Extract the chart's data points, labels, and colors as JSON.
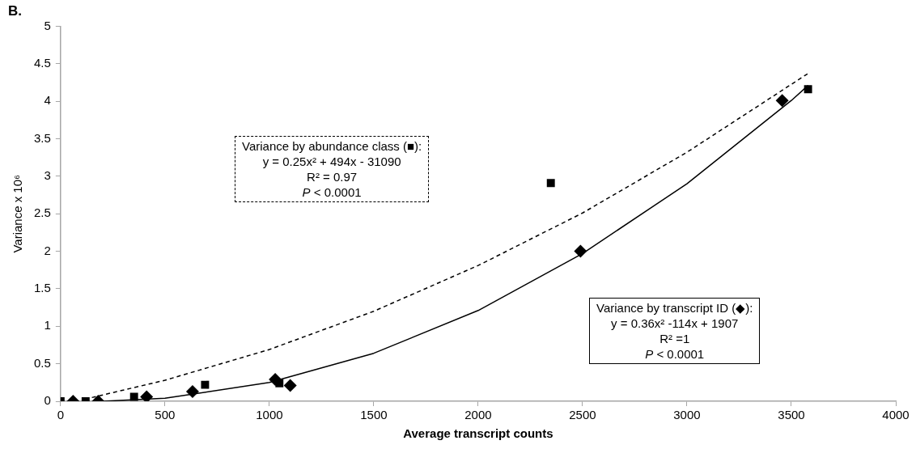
{
  "chart_data": {
    "type": "scatter",
    "title": "B.",
    "xlabel": "Average transcript counts",
    "ylabel": "Variance x 10⁶",
    "xlim": [
      0,
      4000
    ],
    "xticks": [
      0,
      500,
      1000,
      1500,
      2000,
      2500,
      3000,
      3500,
      4000
    ],
    "ylim": [
      0,
      5
    ],
    "yticks": [
      0,
      0.5,
      1,
      1.5,
      2,
      2.5,
      3,
      3.5,
      4,
      4.5,
      5
    ],
    "grid": false,
    "legend": false,
    "series": [
      {
        "type": "scatter",
        "marker": "square",
        "color": "#000000",
        "x": [
          0,
          120,
          352,
          692,
          1048,
          2348,
          3580
        ],
        "values": [
          0,
          0,
          0.06,
          0.22,
          0.24,
          2.91,
          4.16
        ]
      },
      {
        "type": "scatter",
        "marker": "diamond",
        "color": "#000000",
        "x": [
          60,
          180,
          412,
          632,
          1028,
          1100,
          2490,
          3456
        ],
        "values": [
          0,
          0,
          0.06,
          0.13,
          0.29,
          0.21,
          2.0,
          4.01
        ]
      },
      {
        "type": "line",
        "marker": "none",
        "line_style": "dashed",
        "color": "#000000",
        "x": [
          150,
          500,
          1000,
          1500,
          2000,
          2500,
          3000,
          3580
        ],
        "values": [
          0.05,
          0.28,
          0.69,
          1.2,
          1.81,
          2.51,
          3.32,
          4.37
        ]
      },
      {
        "type": "line",
        "marker": "none",
        "line_style": "solid",
        "color": "#000000",
        "x": [
          200,
          500,
          1000,
          1500,
          2000,
          2500,
          3000,
          3500,
          3580
        ],
        "values": [
          0,
          0.04,
          0.25,
          0.64,
          1.21,
          1.97,
          2.9,
          4.01,
          4.21
        ]
      }
    ],
    "annotations": [
      "Variance by abundance class (■):\ny = 0.25x² + 494x - 31090\nR² = 0.97\nP < 0.0001",
      "Variance by transcript ID (◆):\ny = 0.36x² -114x + 1907\nR² =1\nP < 0.0001"
    ]
  }
}
